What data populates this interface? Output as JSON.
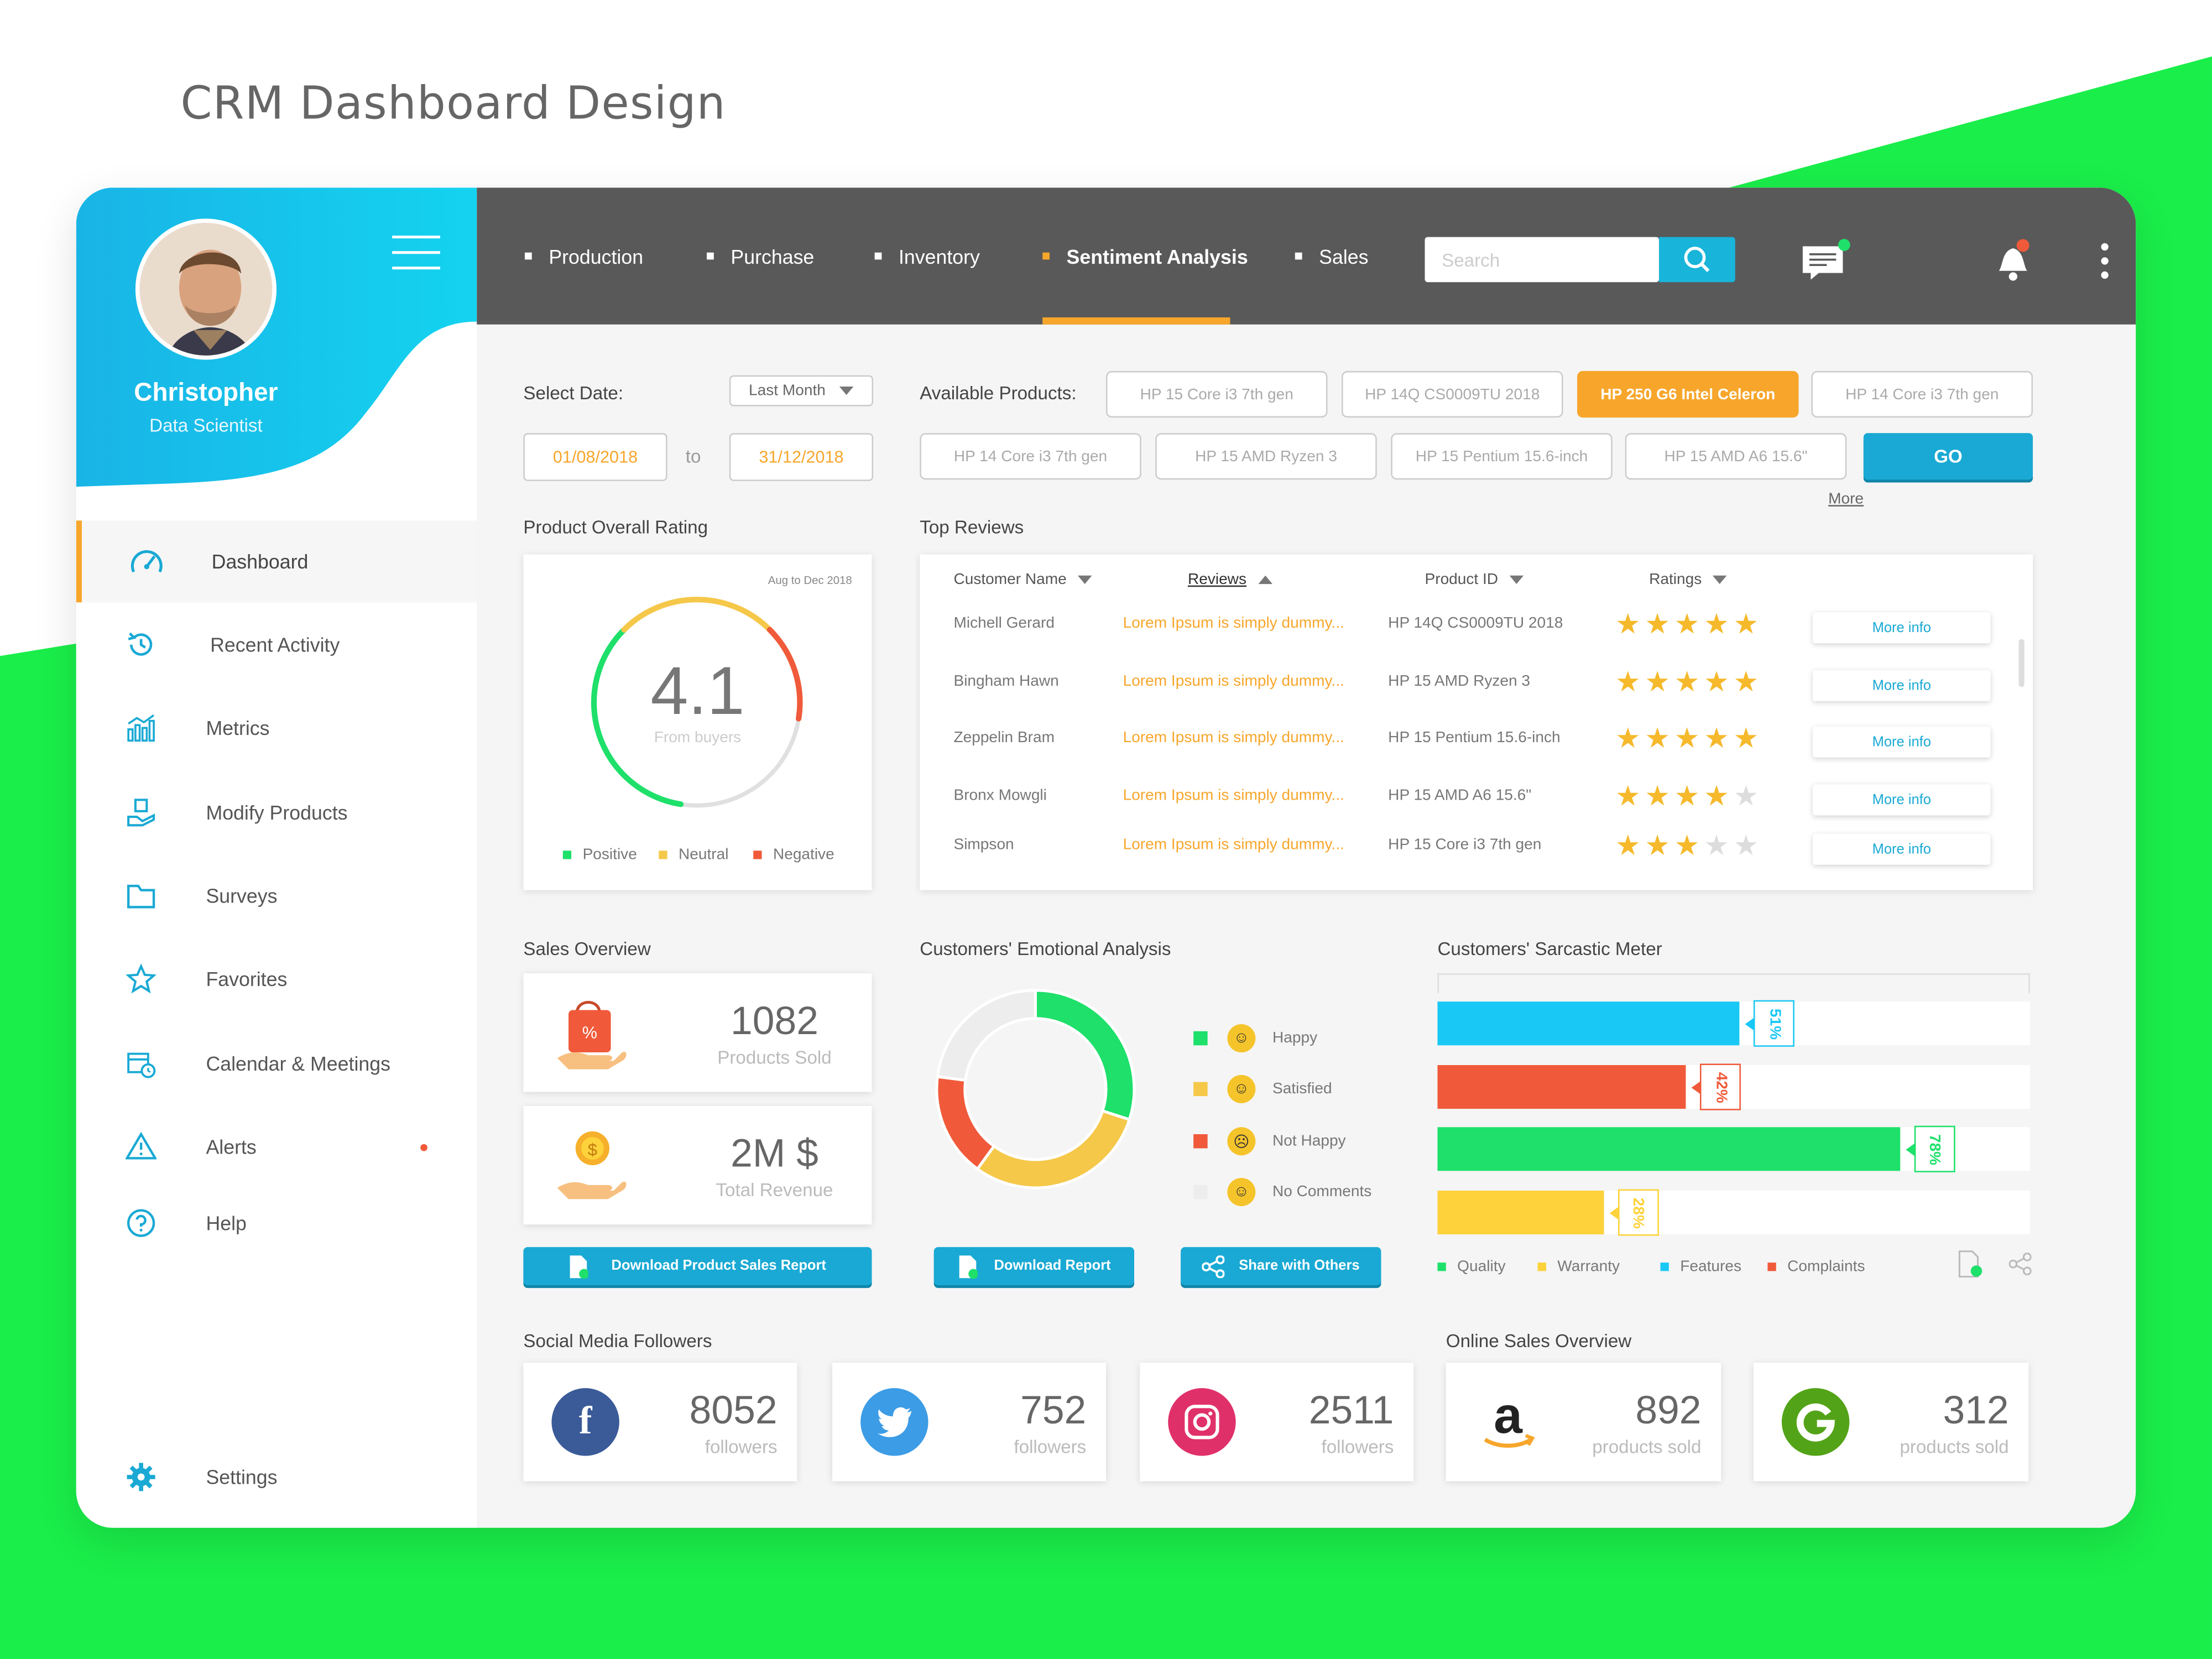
{
  "page": {
    "title": "CRM Dashboard Design"
  },
  "colors": {
    "accent": "#19b4d9",
    "brand_green": "#1aee4a",
    "highlight": "#f7a62b",
    "topbar": "#595959",
    "positive": "#1ee06a",
    "neutral": "#f5c84a",
    "negative": "#f05a3a"
  },
  "profile": {
    "name": "Christopher",
    "role": "Data Scientist"
  },
  "sidebar": {
    "items": [
      {
        "label": "Dashboard",
        "icon": "speedometer-icon"
      },
      {
        "label": "Recent Activity",
        "icon": "history-icon"
      },
      {
        "label": "Metrics",
        "icon": "bar-chart-icon"
      },
      {
        "label": "Modify Products",
        "icon": "hand-box-icon"
      },
      {
        "label": "Surveys",
        "icon": "folder-icon"
      },
      {
        "label": "Favorites",
        "icon": "star-icon"
      },
      {
        "label": "Calendar & Meetings",
        "icon": "calendar-icon"
      },
      {
        "label": "Alerts",
        "icon": "warning-icon"
      },
      {
        "label": "Help",
        "icon": "help-icon"
      }
    ],
    "settings_label": "Settings"
  },
  "topnav": {
    "tabs": [
      "Production",
      "Purchase",
      "Inventory",
      "Sentiment Analysis",
      "Sales"
    ],
    "active_tab": "Sentiment Analysis",
    "search_placeholder": "Search"
  },
  "filters": {
    "select_date_label": "Select Date:",
    "date_range_option": "Last Month",
    "from_date": "01/08/2018",
    "to_label": "to",
    "to_date": "31/12/2018",
    "available_products_label": "Available Products:",
    "products": [
      "HP 15 Core i3 7th gen",
      "HP 14Q CS0009TU 2018",
      "HP 250 G6 Intel Celeron",
      "HP 14 Core i3 7th gen",
      "HP 14 Core i3 7th gen",
      "HP 15 AMD Ryzen 3",
      "HP 15 Pentium 15.6-inch",
      "HP 15 AMD A6 15.6\""
    ],
    "selected_product": "HP 250 G6 Intel Celeron",
    "go_label": "GO",
    "more_label": "More"
  },
  "rating": {
    "title": "Product Overall Rating",
    "period": "Aug to Dec 2018",
    "value": "4.1",
    "caption": "From buyers",
    "legend": [
      "Positive",
      "Neutral",
      "Negative"
    ]
  },
  "reviews": {
    "title": "Top Reviews",
    "columns": [
      "Customer Name",
      "Reviews",
      "Product ID",
      "Ratings"
    ],
    "rows": [
      {
        "name": "Michell Gerard",
        "review": "Lorem Ipsum is simply dummy...",
        "product": "HP 14Q CS0009TU 2018",
        "stars": 5,
        "action": "More info"
      },
      {
        "name": "Bingham Hawn",
        "review": "Lorem Ipsum is simply dummy...",
        "product": "HP 15 AMD Ryzen 3",
        "stars": 5,
        "action": "More info"
      },
      {
        "name": "Zeppelin Bram",
        "review": "Lorem Ipsum is simply dummy...",
        "product": "HP 15 Pentium 15.6-inch",
        "stars": 5,
        "action": "More info"
      },
      {
        "name": "Bronx Mowgli",
        "review": "Lorem Ipsum is simply dummy...",
        "product": "HP 15 AMD A6 15.6\"",
        "stars": 4,
        "action": "More info"
      },
      {
        "name": "Simpson",
        "review": "Lorem Ipsum is simply dummy...",
        "product": "HP 15 Core i3 7th gen",
        "stars": 3,
        "action": "More info"
      }
    ]
  },
  "sales": {
    "title": "Sales Overview",
    "products_sold": "1082",
    "products_sold_label": "Products Sold",
    "revenue": "2M $",
    "revenue_label": "Total Revenue",
    "download_label": "Download Product Sales Report"
  },
  "emotional": {
    "title": "Customers' Emotional Analysis",
    "legend": [
      "Happy",
      "Satisfied",
      "Not Happy",
      "No Comments"
    ],
    "download_label": "Download Report",
    "share_label": "Share with Others"
  },
  "sarcastic": {
    "title": "Customers' Sarcastic Meter",
    "legend": [
      "Quality",
      "Warranty",
      "Features",
      "Complaints"
    ]
  },
  "chart_data": [
    {
      "type": "pie",
      "name": "Product Overall Rating",
      "value": 4.1,
      "segments": [
        {
          "label": "Positive",
          "value": 35
        },
        {
          "label": "Neutral",
          "value": 25
        },
        {
          "label": "Negative",
          "value": 15
        }
      ],
      "color_map": {
        "Positive": "#1ee06a",
        "Neutral": "#f5c84a",
        "Negative": "#f05a3a"
      }
    },
    {
      "type": "pie",
      "name": "Customers' Emotional Analysis",
      "segments": [
        {
          "label": "Happy",
          "value": 30
        },
        {
          "label": "Satisfied",
          "value": 30
        },
        {
          "label": "Not Happy",
          "value": 17
        },
        {
          "label": "No Comments",
          "value": 23
        }
      ],
      "colors": [
        "#1ee06a",
        "#f5c84a",
        "#f05a3a",
        "#ededed"
      ]
    },
    {
      "type": "bar",
      "orientation": "horizontal",
      "name": "Customers' Sarcastic Meter",
      "categories": [
        "Features",
        "Complaints",
        "Quality",
        "Warranty"
      ],
      "values": [
        51,
        42,
        78,
        28
      ],
      "labels": [
        "51%",
        "42%",
        "78%",
        "28%"
      ],
      "colors": [
        "#1ac8f5",
        "#f05a3a",
        "#1ee06a",
        "#fdd23a"
      ],
      "ylim": [
        0,
        100
      ]
    }
  ],
  "social": {
    "title": "Social Media Followers",
    "items": [
      {
        "network": "facebook",
        "count": "8052",
        "label": "followers",
        "color": "#3a5a98"
      },
      {
        "network": "twitter",
        "count": "752",
        "label": "followers",
        "color": "#3c9ce6"
      },
      {
        "network": "instagram",
        "count": "2511",
        "label": "followers",
        "color": "#e0306a"
      }
    ]
  },
  "online_sales": {
    "title": "Online Sales Overview",
    "items": [
      {
        "store": "amazon",
        "count": "892",
        "label": "products sold"
      },
      {
        "store": "groupon",
        "count": "312",
        "label": "products sold",
        "color": "#53a318"
      }
    ]
  }
}
